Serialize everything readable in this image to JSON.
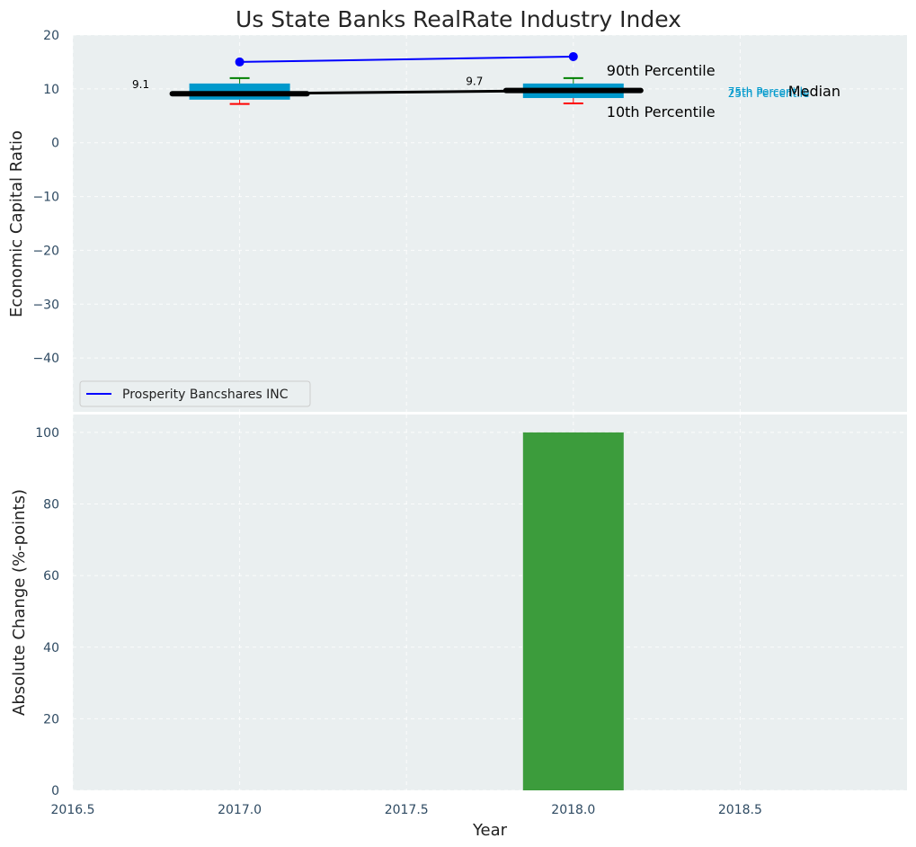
{
  "chart_data": [
    {
      "type": "box",
      "title": "Us State Banks RealRate Industry Index",
      "xlabel": "",
      "ylabel": "Economic Capital Ratio",
      "xlim": [
        2016.5,
        2019.0
      ],
      "ylim": [
        -50,
        20
      ],
      "yticks": [
        20,
        10,
        0,
        -10,
        -20,
        -30,
        -40
      ],
      "grid": true,
      "legend_position": "lower-left",
      "boxes": [
        {
          "x": 2017.0,
          "p10": 7.2,
          "p25": 8.0,
          "median": 9.1,
          "p75": 11.0,
          "p90": 12.0,
          "median_label": "9.1"
        },
        {
          "x": 2018.0,
          "p10": 7.3,
          "p25": 8.3,
          "median": 9.7,
          "p75": 11.0,
          "p90": 12.0,
          "median_label": "9.7"
        }
      ],
      "series": [
        {
          "name": "Prosperity Bancshares INC",
          "x": [
            2017.0,
            2018.0
          ],
          "values": [
            15.0,
            16.0
          ],
          "color": "#0000ff"
        }
      ],
      "annotations": {
        "p90": "90th Percentile",
        "p10": "10th Percentile",
        "median": "Median",
        "p75": "75th Percentile",
        "p25": "25th Percentile"
      }
    },
    {
      "type": "bar",
      "xlabel": "Year",
      "ylabel": "Absolute Change (%-points)",
      "xlim": [
        2016.5,
        2019.0
      ],
      "ylim": [
        0,
        105
      ],
      "xticks": [
        2016.5,
        2017.0,
        2017.5,
        2018.0,
        2018.5
      ],
      "xtick_labels": [
        "2016.5",
        "2017.0",
        "2017.5",
        "2018.0",
        "2018.5"
      ],
      "yticks": [
        0,
        20,
        40,
        60,
        80,
        100
      ],
      "grid": true,
      "x": [
        2018.0
      ],
      "values": [
        100
      ],
      "color": "#3c9c3c"
    }
  ],
  "colors": {
    "panel_bg": "#eaeff0",
    "box_fill": "#0099cc",
    "median_line": "#000000",
    "whisker_high": "#008000",
    "whisker_low": "#ff0000",
    "company_line": "#0000ff",
    "bar": "#3c9c3c"
  }
}
